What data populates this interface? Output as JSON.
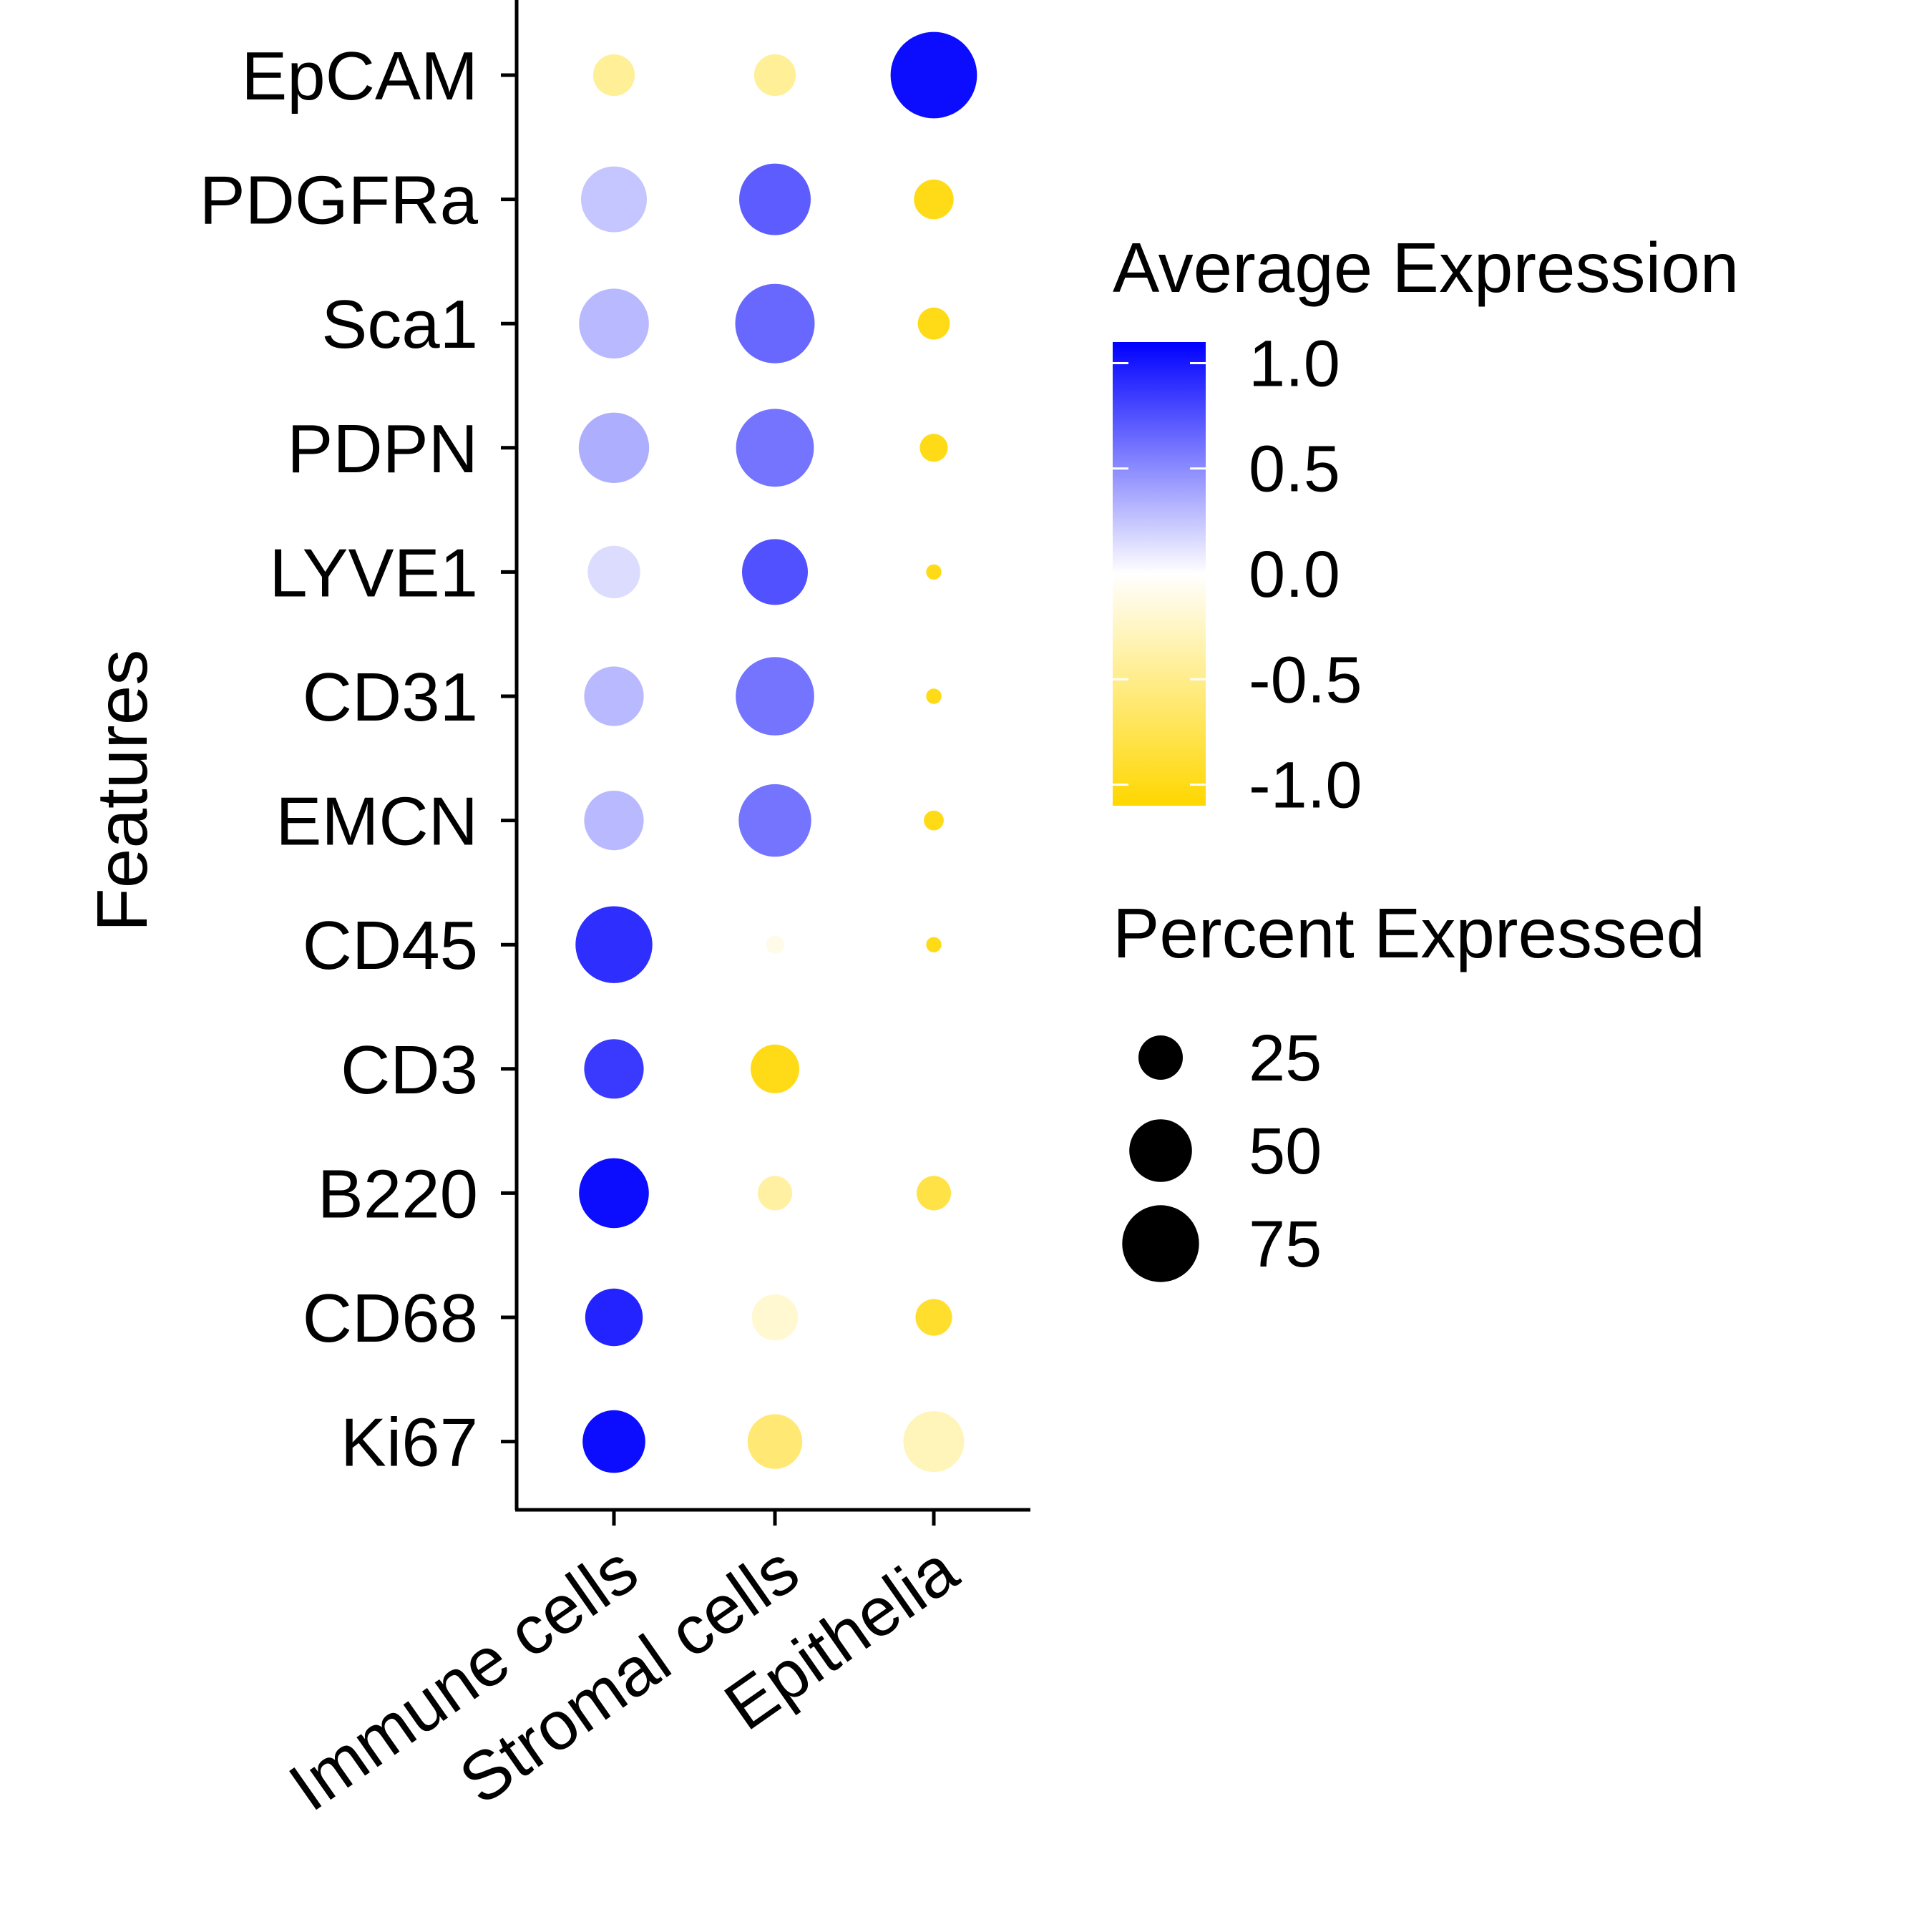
{
  "chart_data": {
    "type": "dotplot",
    "xlabel": "",
    "ylabel": "Features",
    "categories": [
      "Immune cells",
      "Stromal cells",
      "Epithelia"
    ],
    "features": [
      "EpCAM",
      "PDGFRa",
      "Sca1",
      "PDPN",
      "LYVE1",
      "CD31",
      "EMCN",
      "CD45",
      "CD3",
      "B220",
      "CD68",
      "Ki67"
    ],
    "points": [
      {
        "feature": "EpCAM",
        "category": "Immune cells",
        "pct_exp": 22,
        "avg_exp": -0.45
      },
      {
        "feature": "EpCAM",
        "category": "Stromal cells",
        "pct_exp": 22,
        "avg_exp": -0.45
      },
      {
        "feature": "EpCAM",
        "category": "Epithelia",
        "pct_exp": 95,
        "avg_exp": 1.05
      },
      {
        "feature": "PDGFRa",
        "category": "Immune cells",
        "pct_exp": 55,
        "avg_exp": 0.25
      },
      {
        "feature": "PDGFRa",
        "category": "Stromal cells",
        "pct_exp": 65,
        "avg_exp": 0.7
      },
      {
        "feature": "PDGFRa",
        "category": "Epithelia",
        "pct_exp": 20,
        "avg_exp": -1.0
      },
      {
        "feature": "Sca1",
        "category": "Immune cells",
        "pct_exp": 62,
        "avg_exp": 0.3
      },
      {
        "feature": "Sca1",
        "category": "Stromal cells",
        "pct_exp": 80,
        "avg_exp": 0.65
      },
      {
        "feature": "Sca1",
        "category": "Epithelia",
        "pct_exp": 13,
        "avg_exp": -1.0
      },
      {
        "feature": "PDPN",
        "category": "Immune cells",
        "pct_exp": 63,
        "avg_exp": 0.35
      },
      {
        "feature": "PDPN",
        "category": "Stromal cells",
        "pct_exp": 77,
        "avg_exp": 0.6
      },
      {
        "feature": "PDPN",
        "category": "Epithelia",
        "pct_exp": 10,
        "avg_exp": -1.0
      },
      {
        "feature": "LYVE1",
        "category": "Immune cells",
        "pct_exp": 35,
        "avg_exp": 0.15
      },
      {
        "feature": "LYVE1",
        "category": "Stromal cells",
        "pct_exp": 55,
        "avg_exp": 0.75
      },
      {
        "feature": "LYVE1",
        "category": "Epithelia",
        "pct_exp": 3,
        "avg_exp": -1.0
      },
      {
        "feature": "CD31",
        "category": "Immune cells",
        "pct_exp": 45,
        "avg_exp": 0.3
      },
      {
        "feature": "CD31",
        "category": "Stromal cells",
        "pct_exp": 78,
        "avg_exp": 0.6
      },
      {
        "feature": "CD31",
        "category": "Epithelia",
        "pct_exp": 3,
        "avg_exp": -1.0
      },
      {
        "feature": "EMCN",
        "category": "Immune cells",
        "pct_exp": 45,
        "avg_exp": 0.3
      },
      {
        "feature": "EMCN",
        "category": "Stromal cells",
        "pct_exp": 67,
        "avg_exp": 0.6
      },
      {
        "feature": "EMCN",
        "category": "Epithelia",
        "pct_exp": 5,
        "avg_exp": -1.0
      },
      {
        "feature": "CD45",
        "category": "Immune cells",
        "pct_exp": 75,
        "avg_exp": 0.9
      },
      {
        "feature": "CD45",
        "category": "Stromal cells",
        "pct_exp": 4,
        "avg_exp": -0.1
      },
      {
        "feature": "CD45",
        "category": "Epithelia",
        "pct_exp": 3,
        "avg_exp": -1.0
      },
      {
        "feature": "CD3",
        "category": "Immune cells",
        "pct_exp": 45,
        "avg_exp": 0.85
      },
      {
        "feature": "CD3",
        "category": "Stromal cells",
        "pct_exp": 30,
        "avg_exp": -1.0
      },
      {
        "feature": "CD3",
        "category": "Epithelia",
        "pct_exp": 4,
        "avg_exp": 0.0
      },
      {
        "feature": "B220",
        "category": "Immune cells",
        "pct_exp": 62,
        "avg_exp": 1.05
      },
      {
        "feature": "B220",
        "category": "Stromal cells",
        "pct_exp": 15,
        "avg_exp": -0.4
      },
      {
        "feature": "B220",
        "category": "Epithelia",
        "pct_exp": 15,
        "avg_exp": -0.8
      },
      {
        "feature": "CD68",
        "category": "Immune cells",
        "pct_exp": 42,
        "avg_exp": 0.95
      },
      {
        "feature": "CD68",
        "category": "Stromal cells",
        "pct_exp": 27,
        "avg_exp": -0.2
      },
      {
        "feature": "CD68",
        "category": "Epithelia",
        "pct_exp": 17,
        "avg_exp": -0.9
      },
      {
        "feature": "Ki67",
        "category": "Immune cells",
        "pct_exp": 50,
        "avg_exp": 1.05
      },
      {
        "feature": "Ki67",
        "category": "Stromal cells",
        "pct_exp": 38,
        "avg_exp": -0.6
      },
      {
        "feature": "Ki67",
        "category": "Epithelia",
        "pct_exp": 47,
        "avg_exp": -0.3
      }
    ],
    "color_legend": {
      "title": "Average Expression",
      "ticks": [
        1.0,
        0.5,
        0.0,
        -0.5,
        -1.0
      ],
      "tick_labels": [
        "1.0",
        "0.5",
        "0.0",
        "-0.5",
        "-1.0"
      ],
      "range": [
        -1.1,
        1.1
      ],
      "low_color": "#FFD700",
      "mid_color": "#FFFFFF",
      "high_color": "#0000FF"
    },
    "size_legend": {
      "title": "Percent Expressed",
      "values": [
        25,
        50,
        75
      ],
      "labels": [
        "25",
        "50",
        "75"
      ]
    },
    "grid": false,
    "legend_position": "right"
  }
}
